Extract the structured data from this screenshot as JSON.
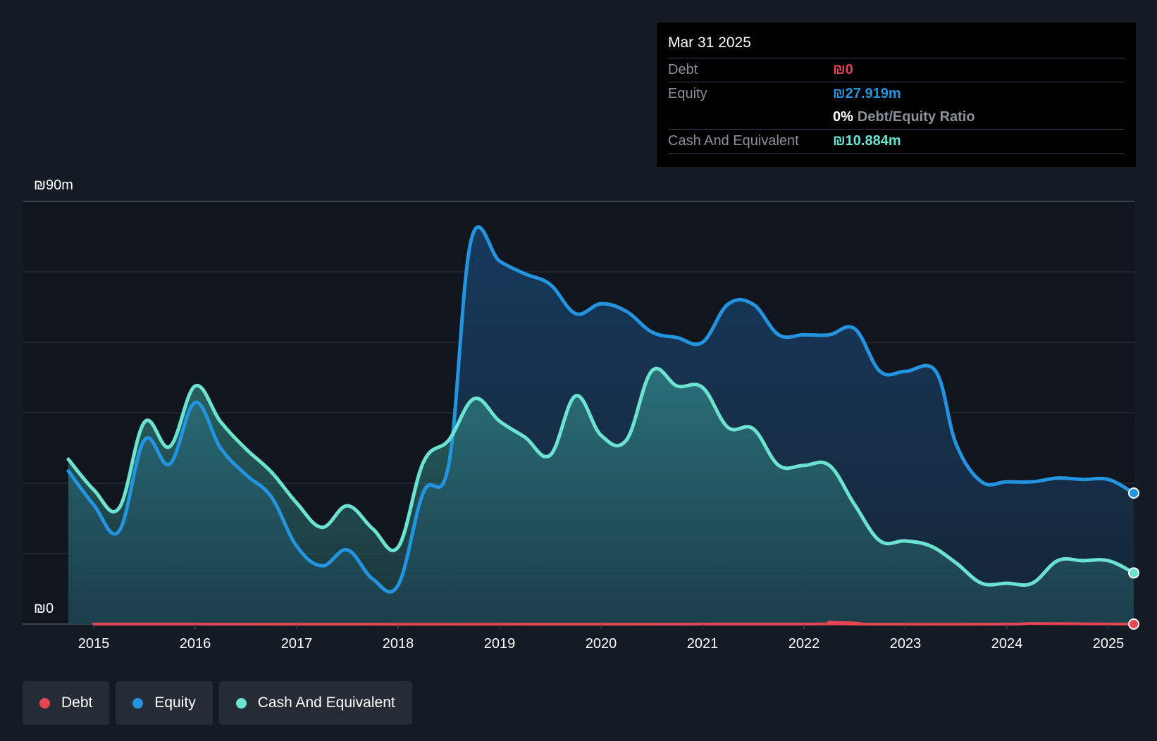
{
  "tooltip": {
    "date": "Mar 31 2025",
    "debt_label": "Debt",
    "debt_value": "₪0",
    "equity_label": "Equity",
    "equity_value": "₪27.919m",
    "ratio_value": "0%",
    "ratio_label": "Debt/Equity Ratio",
    "cash_label": "Cash And Equivalent",
    "cash_value": "₪10.884m"
  },
  "legend": {
    "debt": "Debt",
    "equity": "Equity",
    "cash": "Cash And Equivalent"
  },
  "colors": {
    "debt": "#e64552",
    "equity": "#2394df",
    "cash": "#6ce3d0",
    "background": "#151b24"
  },
  "chart_data": {
    "type": "area",
    "title": "",
    "xlabel": "",
    "ylabel": "",
    "ylim": [
      0,
      90
    ],
    "y_unit": "₪m",
    "ytick_labels": [
      "₪90m",
      "₪0"
    ],
    "xticks": [
      2015,
      2016,
      2017,
      2018,
      2019,
      2020,
      2021,
      2022,
      2023,
      2024,
      2025
    ],
    "series": [
      {
        "name": "Equity",
        "points": [
          [
            2014.75,
            32.6
          ],
          [
            2015.0,
            25.4
          ],
          [
            2015.25,
            19.8
          ],
          [
            2015.5,
            39.2
          ],
          [
            2015.75,
            34.1
          ],
          [
            2016.0,
            47.2
          ],
          [
            2016.25,
            37.5
          ],
          [
            2016.5,
            31.8
          ],
          [
            2016.75,
            27.1
          ],
          [
            2017.0,
            16.6
          ],
          [
            2017.25,
            12.4
          ],
          [
            2017.5,
            15.8
          ],
          [
            2017.75,
            9.6
          ],
          [
            2018.0,
            8.3
          ],
          [
            2018.25,
            28.1
          ],
          [
            2018.5,
            34.1
          ],
          [
            2018.72,
            81.8
          ],
          [
            2019.0,
            77.3
          ],
          [
            2019.25,
            74.6
          ],
          [
            2019.5,
            72.3
          ],
          [
            2019.75,
            66.1
          ],
          [
            2020.0,
            68.2
          ],
          [
            2020.25,
            66.6
          ],
          [
            2020.5,
            62.2
          ],
          [
            2020.75,
            61.0
          ],
          [
            2021.0,
            60.0
          ],
          [
            2021.25,
            68.1
          ],
          [
            2021.5,
            68.1
          ],
          [
            2021.75,
            61.6
          ],
          [
            2022.0,
            61.6
          ],
          [
            2022.25,
            61.6
          ],
          [
            2022.5,
            62.9
          ],
          [
            2022.75,
            53.8
          ],
          [
            2023.0,
            53.8
          ],
          [
            2023.3,
            53.8
          ],
          [
            2023.5,
            38.3
          ],
          [
            2023.75,
            30.3
          ],
          [
            2024.0,
            30.3
          ],
          [
            2024.25,
            30.3
          ],
          [
            2024.5,
            31.1
          ],
          [
            2024.75,
            30.8
          ],
          [
            2025.0,
            30.8
          ],
          [
            2025.25,
            27.9
          ]
        ]
      },
      {
        "name": "Cash And Equivalent",
        "points": [
          [
            2014.75,
            35.1
          ],
          [
            2015.0,
            28.6
          ],
          [
            2015.25,
            24.7
          ],
          [
            2015.5,
            43.0
          ],
          [
            2015.75,
            37.8
          ],
          [
            2016.0,
            50.7
          ],
          [
            2016.25,
            43.1
          ],
          [
            2016.5,
            37.3
          ],
          [
            2016.75,
            32.4
          ],
          [
            2017.0,
            25.8
          ],
          [
            2017.25,
            20.6
          ],
          [
            2017.5,
            25.2
          ],
          [
            2017.75,
            20.3
          ],
          [
            2018.0,
            16.4
          ],
          [
            2018.25,
            34.5
          ],
          [
            2018.5,
            39.2
          ],
          [
            2018.75,
            48.0
          ],
          [
            2019.0,
            43.2
          ],
          [
            2019.25,
            39.8
          ],
          [
            2019.5,
            36.0
          ],
          [
            2019.75,
            48.6
          ],
          [
            2020.0,
            40.2
          ],
          [
            2020.25,
            39.2
          ],
          [
            2020.5,
            53.9
          ],
          [
            2020.75,
            50.7
          ],
          [
            2021.0,
            50.4
          ],
          [
            2021.25,
            41.9
          ],
          [
            2021.5,
            41.6
          ],
          [
            2021.75,
            33.8
          ],
          [
            2022.0,
            33.8
          ],
          [
            2022.25,
            33.8
          ],
          [
            2022.5,
            25.4
          ],
          [
            2022.75,
            17.7
          ],
          [
            2023.0,
            17.7
          ],
          [
            2023.25,
            16.6
          ],
          [
            2023.5,
            13.0
          ],
          [
            2023.75,
            8.7
          ],
          [
            2024.0,
            8.7
          ],
          [
            2024.25,
            8.7
          ],
          [
            2024.5,
            13.5
          ],
          [
            2024.75,
            13.5
          ],
          [
            2025.0,
            13.5
          ],
          [
            2025.25,
            10.9
          ]
        ]
      },
      {
        "name": "Debt",
        "points": [
          [
            2015.0,
            0
          ],
          [
            2021.9,
            0
          ],
          [
            2022.25,
            0.4
          ],
          [
            2022.5,
            0
          ],
          [
            2024.0,
            0
          ],
          [
            2024.25,
            0.1
          ],
          [
            2025.25,
            0
          ]
        ]
      }
    ]
  }
}
